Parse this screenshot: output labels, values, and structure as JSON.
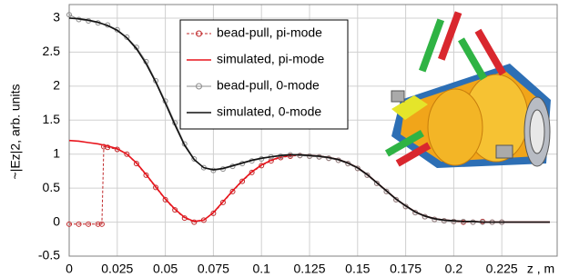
{
  "chart_data": {
    "type": "line",
    "y_label": "~|Ez|2, arb. units",
    "x_label": "z , m",
    "xlim": [
      0,
      0.25
    ],
    "ylim": [
      -0.5,
      3.2
    ],
    "xticks": [
      0,
      0.025,
      0.05,
      0.075,
      0.1,
      0.125,
      0.15,
      0.175,
      0.2,
      0.225
    ],
    "yticks": [
      -0.5,
      0,
      0.5,
      1,
      1.5,
      2,
      2.5,
      3
    ],
    "grid": true,
    "series": [
      {
        "name": "bead-pull, pi-mode",
        "color": "#c0282a",
        "style": "dashed",
        "marker": "circle",
        "x": [
          0,
          0.005,
          0.01,
          0.015,
          0.017,
          0.018,
          0.02,
          0.025,
          0.03,
          0.035,
          0.04,
          0.045,
          0.05,
          0.055,
          0.06,
          0.065,
          0.07,
          0.075,
          0.08,
          0.085,
          0.09,
          0.095,
          0.1,
          0.105,
          0.11,
          0.115,
          0.12,
          0.125,
          0.13,
          0.135,
          0.14,
          0.145,
          0.15,
          0.155,
          0.16,
          0.165,
          0.17,
          0.175,
          0.18,
          0.185,
          0.19,
          0.195,
          0.2,
          0.205,
          0.21,
          0.215,
          0.22,
          0.225
        ],
        "values": [
          -0.03,
          -0.03,
          -0.03,
          -0.03,
          -0.03,
          1.11,
          1.1,
          1.07,
          1.0,
          0.86,
          0.69,
          0.51,
          0.33,
          0.18,
          0.06,
          0.0,
          0.03,
          0.13,
          0.29,
          0.45,
          0.6,
          0.73,
          0.83,
          0.9,
          0.95,
          0.97,
          0.98,
          0.97,
          0.96,
          0.94,
          0.91,
          0.86,
          0.79,
          0.69,
          0.57,
          0.45,
          0.33,
          0.23,
          0.14,
          0.08,
          0.04,
          0.02,
          0.01,
          0.0,
          0.0,
          0.01,
          0.0,
          0.0
        ]
      },
      {
        "name": "simulated, pi-mode",
        "color": "#e8141c",
        "style": "solid",
        "x": [
          0,
          0.005,
          0.01,
          0.015,
          0.02,
          0.025,
          0.03,
          0.035,
          0.04,
          0.045,
          0.05,
          0.055,
          0.06,
          0.065,
          0.07,
          0.075,
          0.08,
          0.085,
          0.09,
          0.095,
          0.1,
          0.105,
          0.11,
          0.115,
          0.12,
          0.125,
          0.13,
          0.135,
          0.14,
          0.145,
          0.15,
          0.155,
          0.16,
          0.165,
          0.17,
          0.175,
          0.18,
          0.185,
          0.19,
          0.195,
          0.2,
          0.205,
          0.21,
          0.215,
          0.22,
          0.225,
          0.23,
          0.235,
          0.24,
          0.245,
          0.25
        ],
        "values": [
          1.2,
          1.19,
          1.17,
          1.15,
          1.12,
          1.08,
          1.0,
          0.87,
          0.7,
          0.52,
          0.34,
          0.19,
          0.07,
          0.01,
          0.03,
          0.14,
          0.3,
          0.46,
          0.61,
          0.74,
          0.84,
          0.91,
          0.96,
          0.98,
          0.99,
          0.98,
          0.97,
          0.95,
          0.92,
          0.87,
          0.8,
          0.7,
          0.58,
          0.46,
          0.34,
          0.24,
          0.15,
          0.09,
          0.05,
          0.03,
          0.02,
          0.01,
          0.01,
          0,
          0,
          0,
          0,
          0,
          0,
          0,
          0
        ]
      },
      {
        "name": "bead-pull, 0-mode",
        "color": "#8c8c8c",
        "style": "solid",
        "marker": "circle",
        "x": [
          0,
          0.005,
          0.01,
          0.015,
          0.02,
          0.025,
          0.03,
          0.035,
          0.04,
          0.045,
          0.05,
          0.055,
          0.06,
          0.065,
          0.07,
          0.075,
          0.08,
          0.085,
          0.09,
          0.095,
          0.1,
          0.105,
          0.11,
          0.115,
          0.12,
          0.125,
          0.13,
          0.135,
          0.14,
          0.145,
          0.15,
          0.155,
          0.16,
          0.165,
          0.17,
          0.175,
          0.18,
          0.185,
          0.19,
          0.195,
          0.2,
          0.205,
          0.21,
          0.215,
          0.22,
          0.225
        ],
        "values": [
          3.05,
          2.98,
          2.96,
          2.93,
          2.9,
          2.83,
          2.72,
          2.57,
          2.36,
          2.08,
          1.78,
          1.46,
          1.15,
          0.93,
          0.8,
          0.76,
          0.78,
          0.82,
          0.86,
          0.9,
          0.93,
          0.96,
          0.97,
          0.99,
          0.98,
          0.97,
          0.96,
          0.94,
          0.91,
          0.86,
          0.79,
          0.69,
          0.57,
          0.45,
          0.33,
          0.23,
          0.14,
          0.08,
          0.04,
          0.02,
          0.01,
          0.01,
          0.0,
          0.0,
          0.0,
          0.0
        ]
      },
      {
        "name": "simulated, 0-mode",
        "color": "#111111",
        "style": "solid",
        "x": [
          0,
          0.005,
          0.01,
          0.015,
          0.02,
          0.025,
          0.03,
          0.035,
          0.04,
          0.045,
          0.05,
          0.055,
          0.06,
          0.065,
          0.07,
          0.075,
          0.08,
          0.085,
          0.09,
          0.095,
          0.1,
          0.105,
          0.11,
          0.115,
          0.12,
          0.125,
          0.13,
          0.135,
          0.14,
          0.145,
          0.15,
          0.155,
          0.16,
          0.165,
          0.17,
          0.175,
          0.18,
          0.185,
          0.19,
          0.195,
          0.2,
          0.205,
          0.21,
          0.215,
          0.22,
          0.225,
          0.23,
          0.235,
          0.24,
          0.245,
          0.25
        ],
        "values": [
          3.0,
          2.99,
          2.97,
          2.94,
          2.89,
          2.82,
          2.71,
          2.55,
          2.33,
          2.06,
          1.75,
          1.43,
          1.13,
          0.92,
          0.8,
          0.77,
          0.79,
          0.83,
          0.87,
          0.91,
          0.94,
          0.96,
          0.98,
          0.99,
          0.99,
          0.98,
          0.97,
          0.95,
          0.92,
          0.87,
          0.8,
          0.7,
          0.58,
          0.46,
          0.34,
          0.24,
          0.15,
          0.09,
          0.05,
          0.03,
          0.02,
          0.01,
          0.01,
          0,
          0,
          0,
          0,
          0,
          0,
          0,
          0
        ]
      }
    ]
  }
}
